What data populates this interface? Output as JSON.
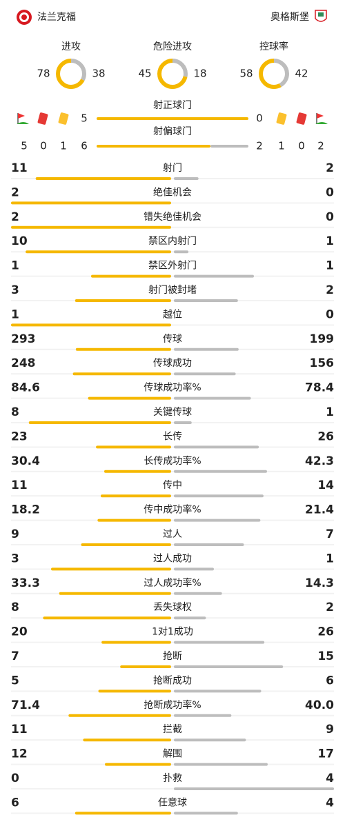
{
  "header": {
    "home": "法兰克福",
    "away": "奥格斯堡"
  },
  "rings": [
    {
      "label": "进攻",
      "home": 78,
      "away": 38
    },
    {
      "label": "危险进攻",
      "home": 45,
      "away": 18
    },
    {
      "label": "控球率",
      "home": 58,
      "away": 42
    }
  ],
  "shots_on": {
    "label": "射正球门",
    "home": 5,
    "away": 0
  },
  "shots_off": {
    "label": "射偏球门",
    "home": 6,
    "away": 2
  },
  "cards": {
    "home": {
      "corners": 5,
      "red": 0,
      "yellow": 1
    },
    "away": {
      "yellow": 1,
      "red": 0,
      "corners": 2
    }
  },
  "stats": [
    {
      "label": "射门",
      "home": 11,
      "away": 2
    },
    {
      "label": "绝佳机会",
      "home": 2,
      "away": 0
    },
    {
      "label": "错失绝佳机会",
      "home": 2,
      "away": 0
    },
    {
      "label": "禁区内射门",
      "home": 10,
      "away": 1
    },
    {
      "label": "禁区外射门",
      "home": 1,
      "away": 1
    },
    {
      "label": "射门被封堵",
      "home": 3,
      "away": 2
    },
    {
      "label": "越位",
      "home": 1,
      "away": 0
    },
    {
      "label": "传球",
      "home": 293,
      "away": 199
    },
    {
      "label": "传球成功",
      "home": 248,
      "away": 156
    },
    {
      "label": "传球成功率%",
      "home": 84.6,
      "away": 78.4
    },
    {
      "label": "关键传球",
      "home": 8,
      "away": 1
    },
    {
      "label": "长传",
      "home": 23,
      "away": 26
    },
    {
      "label": "长传成功率%",
      "home": 30.4,
      "away": 42.3
    },
    {
      "label": "传中",
      "home": 11,
      "away": 14
    },
    {
      "label": "传中成功率%",
      "home": 18.2,
      "away": 21.4
    },
    {
      "label": "过人",
      "home": 9,
      "away": 7
    },
    {
      "label": "过人成功",
      "home": 3,
      "away": 1
    },
    {
      "label": "过人成功率%",
      "home": 33.3,
      "away": 14.3
    },
    {
      "label": "丢失球权",
      "home": 8,
      "away": 2
    },
    {
      "label": "1对1成功",
      "home": 20,
      "away": 26
    },
    {
      "label": "抢断",
      "home": 7,
      "away": 15
    },
    {
      "label": "抢断成功",
      "home": 5,
      "away": 6
    },
    {
      "label": "抢断成功率%",
      "home": 71.4,
      "away": {
        "value": 40,
        "label": "40.0"
      }
    },
    {
      "label": "拦截",
      "home": 11,
      "away": 9
    },
    {
      "label": "解围",
      "home": 12,
      "away": 17
    },
    {
      "label": "扑救",
      "home": 0,
      "away": 4
    },
    {
      "label": "任意球",
      "home": 6,
      "away": 4
    }
  ]
}
